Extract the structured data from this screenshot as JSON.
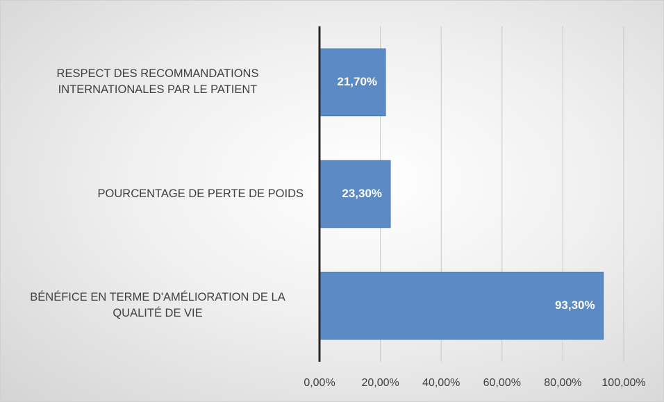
{
  "chart_data": {
    "type": "barh",
    "categories": [
      "RESPECT DES RECOMMANDATIONS INTERNATIONALES PAR LE PATIENT",
      "POURCENTAGE DE PERTE DE POIDS",
      "BÉNÉFICE EN TERME D'AMÉLIORATION DE LA QUALITÉ DE VIE"
    ],
    "values": [
      21.7,
      23.3,
      93.3
    ],
    "value_labels": [
      "21,70%",
      "23,30%",
      "93,30%"
    ],
    "color": "#5b8ac4",
    "xlim": [
      0,
      100
    ],
    "xticks": [
      {
        "value": 0,
        "label": "0,00%"
      },
      {
        "value": 20,
        "label": "20,00%"
      },
      {
        "value": 40,
        "label": "40,00%"
      },
      {
        "value": 60,
        "label": "60,00%"
      },
      {
        "value": 80,
        "label": "80,00%"
      },
      {
        "value": 100,
        "label": "100,00%"
      }
    ],
    "grid": true
  }
}
